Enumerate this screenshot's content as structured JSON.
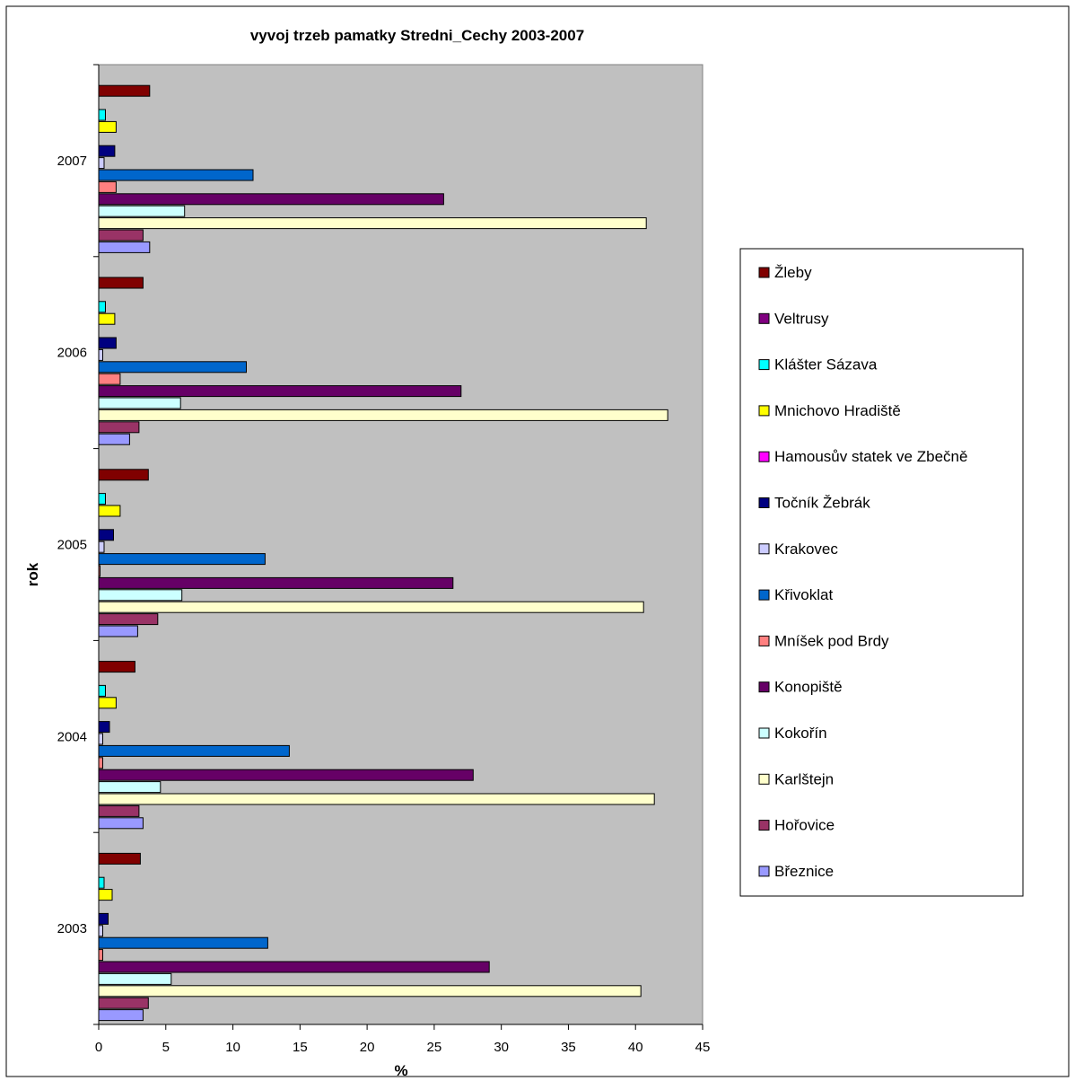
{
  "chart_data": {
    "type": "bar",
    "orientation": "horizontal",
    "title": "vyvoj trzeb pamatky Stredni_Cechy 2003-2007",
    "xlabel": "%",
    "ylabel": "rok",
    "xlim": [
      0,
      45
    ],
    "xticks": [
      "0",
      "5",
      "10",
      "15",
      "20",
      "25",
      "30",
      "35",
      "40",
      "45"
    ],
    "grid": false,
    "legend_position": "right",
    "plot_background": "#c0c0c0",
    "categories": [
      "2003",
      "2004",
      "2005",
      "2006",
      "2007"
    ],
    "series": [
      {
        "name": "Březnice",
        "color": "#9999ff",
        "values": [
          3.3,
          3.3,
          2.9,
          2.3,
          3.8
        ]
      },
      {
        "name": "Hořovice",
        "color": "#993366",
        "values": [
          3.7,
          3.0,
          4.4,
          3.0,
          3.3
        ]
      },
      {
        "name": "Karlštejn",
        "color": "#ffffcc",
        "values": [
          40.4,
          41.4,
          40.6,
          42.4,
          40.8
        ]
      },
      {
        "name": "Kokořín",
        "color": "#ccffff",
        "values": [
          5.4,
          4.6,
          6.2,
          6.1,
          6.4
        ]
      },
      {
        "name": "Konopiště",
        "color": "#660066",
        "values": [
          29.1,
          27.9,
          26.4,
          27.0,
          25.7
        ]
      },
      {
        "name": "Mníšek pod Brdy",
        "color": "#ff8080",
        "values": [
          0.3,
          0.3,
          0.1,
          1.6,
          1.3
        ]
      },
      {
        "name": "Křivoklat",
        "color": "#0066cc",
        "values": [
          12.6,
          14.2,
          12.4,
          11.0,
          11.5
        ]
      },
      {
        "name": "Krakovec",
        "color": "#ccccff",
        "values": [
          0.3,
          0.3,
          0.4,
          0.3,
          0.4
        ]
      },
      {
        "name": "Točník Žebrák",
        "color": "#000080",
        "values": [
          0.7,
          0.8,
          1.1,
          1.3,
          1.2
        ]
      },
      {
        "name": "Hamousův statek ve Zbečně",
        "color": "#ff00ff",
        "values": [
          0.0,
          0.0,
          0.0,
          0.0,
          0.0
        ]
      },
      {
        "name": "Mnichovo Hradiště",
        "color": "#ffff00",
        "values": [
          1.0,
          1.3,
          1.6,
          1.2,
          1.3
        ]
      },
      {
        "name": "Klášter Sázava",
        "color": "#00ffff",
        "values": [
          0.4,
          0.5,
          0.5,
          0.5,
          0.5
        ]
      },
      {
        "name": "Veltrusy",
        "color": "#800080",
        "values": [
          0.0,
          0.0,
          0.0,
          0.0,
          0.0
        ]
      },
      {
        "name": "Žleby",
        "color": "#800000",
        "values": [
          3.1,
          2.7,
          3.7,
          3.3,
          3.8
        ]
      }
    ]
  }
}
